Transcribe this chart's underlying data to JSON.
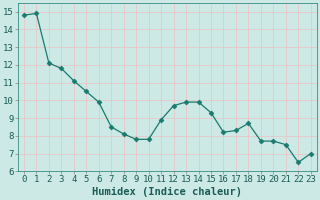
{
  "x": [
    0,
    1,
    2,
    3,
    4,
    5,
    6,
    7,
    8,
    9,
    10,
    11,
    12,
    13,
    14,
    15,
    16,
    17,
    18,
    19,
    20,
    21,
    22,
    23
  ],
  "y": [
    14.8,
    14.9,
    12.1,
    11.8,
    11.1,
    10.5,
    9.9,
    8.5,
    8.1,
    7.8,
    7.8,
    8.9,
    9.7,
    9.9,
    9.9,
    9.3,
    8.2,
    8.3,
    8.7,
    7.7,
    7.7,
    7.5,
    6.5,
    7.0
  ],
  "line_color": "#1a7a6e",
  "marker": "D",
  "marker_size": 2.5,
  "bg_color": "#cce9e5",
  "grid_color": "#e8c8c8",
  "xlabel": "Humidex (Indice chaleur)",
  "ylim": [
    6,
    15.5
  ],
  "xlim": [
    -0.5,
    23.5
  ],
  "yticks": [
    6,
    7,
    8,
    9,
    10,
    11,
    12,
    13,
    14,
    15
  ],
  "xticks": [
    0,
    1,
    2,
    3,
    4,
    5,
    6,
    7,
    8,
    9,
    10,
    11,
    12,
    13,
    14,
    15,
    16,
    17,
    18,
    19,
    20,
    21,
    22,
    23
  ],
  "tick_label_fontsize": 6.5,
  "xlabel_fontsize": 7.5
}
